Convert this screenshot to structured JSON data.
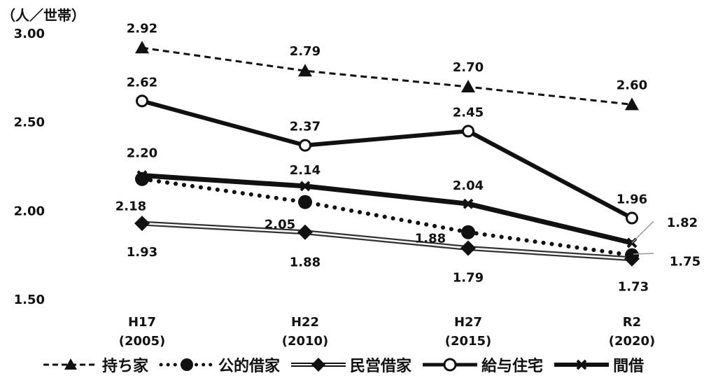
{
  "chart_data": {
    "type": "line",
    "unit_label": "（人／世帯）",
    "categories": [
      {
        "line1": "H17",
        "line2": "(2005)"
      },
      {
        "line1": "H22",
        "line2": "(2010)"
      },
      {
        "line1": "H27",
        "line2": "(2015)"
      },
      {
        "line1": "R2",
        "line2": "(2020)"
      }
    ],
    "ylim": [
      1.5,
      3.0
    ],
    "yticks": [
      "1.50",
      "2.00",
      "2.50",
      "3.00"
    ],
    "grid": false,
    "legend_position": "bottom",
    "series": [
      {
        "name": "持ち家",
        "style": "dashed",
        "marker": "triangle",
        "values": [
          2.92,
          2.79,
          2.7,
          2.6
        ],
        "labels": [
          "2.92",
          "2.79",
          "2.70",
          "2.60"
        ]
      },
      {
        "name": "公的借家",
        "style": "dotted",
        "marker": "circle-filled",
        "values": [
          2.18,
          2.05,
          1.88,
          1.75
        ],
        "labels": [
          "2.18",
          "2.05",
          "1.88",
          "1.75"
        ]
      },
      {
        "name": "民営借家",
        "style": "double",
        "marker": "diamond",
        "values": [
          1.93,
          1.88,
          1.79,
          1.73
        ],
        "labels": [
          "1.93",
          "1.88",
          "1.79",
          "1.73"
        ]
      },
      {
        "name": "給与住宅",
        "style": "solid",
        "marker": "circle-open",
        "values": [
          2.62,
          2.37,
          2.45,
          1.96
        ],
        "labels": [
          "2.62",
          "2.37",
          "2.45",
          "1.96"
        ]
      },
      {
        "name": "間借",
        "style": "solid-thick",
        "marker": "x",
        "values": [
          2.2,
          2.14,
          2.04,
          1.82
        ],
        "labels": [
          "2.20",
          "2.14",
          "2.04",
          "1.82"
        ]
      }
    ]
  }
}
